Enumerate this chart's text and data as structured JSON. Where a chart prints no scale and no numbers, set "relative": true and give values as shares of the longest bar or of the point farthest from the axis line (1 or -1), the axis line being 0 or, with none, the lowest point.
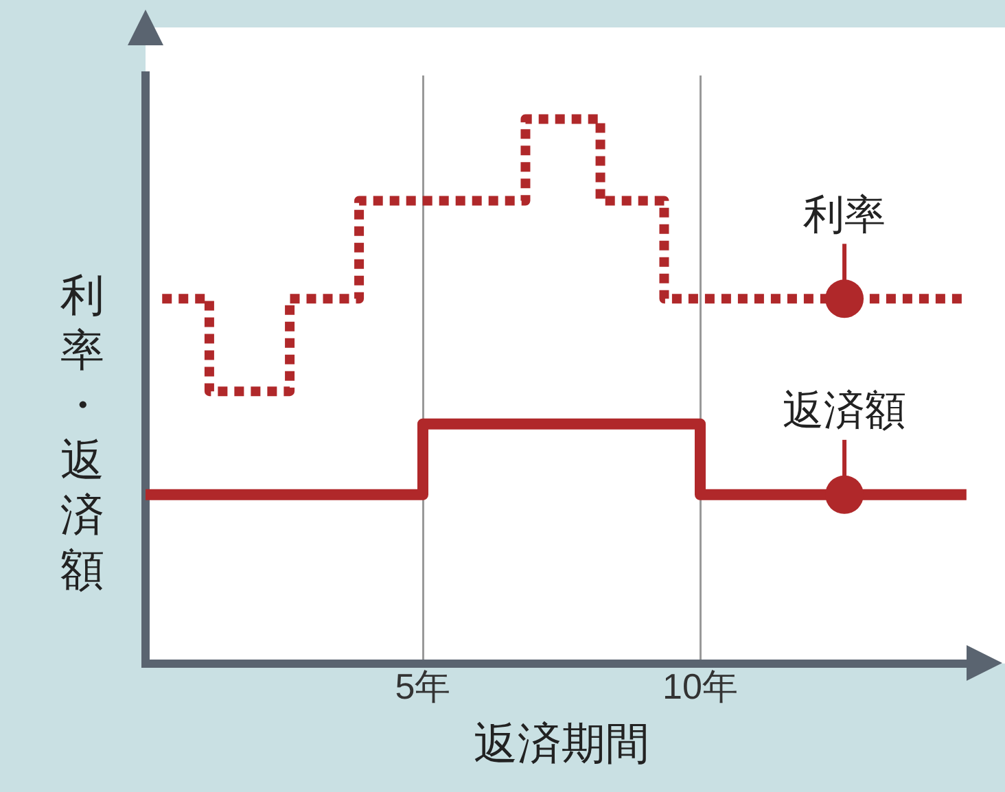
{
  "chart_data": {
    "type": "step",
    "xlabel": "返済期間",
    "ylabel": "利率・返済額",
    "relative": true,
    "xlim": [
      0,
      15
    ],
    "xticks": [
      {
        "value": 5,
        "label": "5年"
      },
      {
        "value": 10,
        "label": "10年"
      }
    ],
    "grid": "x",
    "tick_labels": "x",
    "legend": false,
    "marker": "none",
    "series": [
      {
        "color": "#b0282a",
        "line_style": "dotted",
        "x": [
          0.3,
          1.15,
          2.6,
          3.85,
          6.85,
          8.2,
          9.35,
          14.8
        ],
        "values": [
          0.67,
          0.5,
          0.67,
          0.85,
          1,
          0.85,
          0.67,
          0.67
        ]
      },
      {
        "color": "#b0282a",
        "line_style": "solid",
        "x": [
          0,
          5,
          10,
          14.8
        ],
        "values": [
          0.31,
          0.44,
          0.31,
          0.31
        ]
      }
    ],
    "annotations": [
      {
        "text": "利率",
        "x": 12.6,
        "y": 0.67
      },
      {
        "text": "返済額",
        "x": 12.6,
        "y": 0.31
      }
    ]
  }
}
